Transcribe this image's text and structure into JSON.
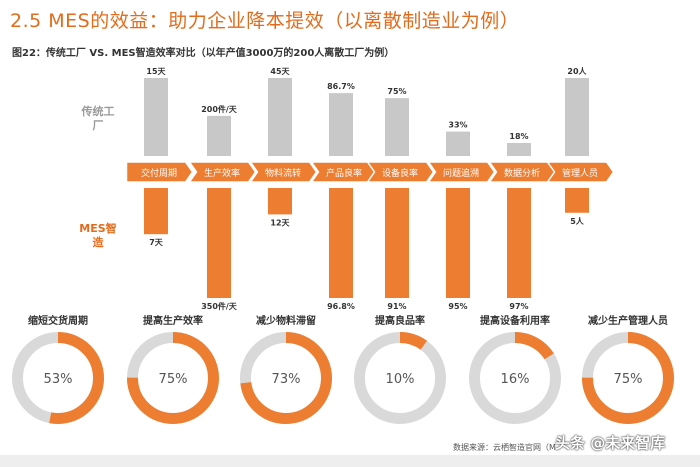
{
  "header": {
    "title": "2.5 MES的效益：助力企业降本提效（以离散制造业为例）",
    "subtitle": "图22：传统工厂 VS. MES智造效率对比（以年产值3000万的200人离散工厂为例）"
  },
  "labels": {
    "traditional": "传统工厂",
    "mes": "MES智造"
  },
  "chart_data": [
    {
      "type": "bar",
      "categories": [
        "交付周期",
        "生产效率",
        "物料流转",
        "产品良率",
        "设备良率",
        "问题追溯",
        "数据分析",
        "管理人员"
      ],
      "series": [
        {
          "name": "传统工厂",
          "values": [
            15,
            200,
            45,
            86.7,
            75,
            33,
            18,
            20
          ],
          "labels": [
            "15天",
            "200件/天",
            "45天",
            "86.7%",
            "75%",
            "33%",
            "18%",
            "20人"
          ]
        },
        {
          "name": "MES智造",
          "values": [
            7,
            350,
            12,
            96.8,
            91,
            95,
            97,
            5
          ],
          "labels": [
            "7天",
            "350件/天",
            "12天",
            "96.8%",
            "91%",
            "95%",
            "97%",
            "5人"
          ]
        }
      ],
      "colors": {
        "traditional": "#c8c8c8",
        "mes": "#ed7d31",
        "arrow": "#ed7d31"
      }
    },
    {
      "type": "pie",
      "donuts": [
        {
          "title": "缩短交货周期",
          "value": 53,
          "label": "53%"
        },
        {
          "title": "提高生产效率",
          "value": 75,
          "label": "75%"
        },
        {
          "title": "减少物料滞留",
          "value": 73,
          "label": "73%"
        },
        {
          "title": "提高良品率",
          "value": 10,
          "label": "10%"
        },
        {
          "title": "提高设备利用率",
          "value": 16,
          "label": "16%"
        },
        {
          "title": "减少生产管理人员",
          "value": 75,
          "label": "75%"
        }
      ],
      "colors": {
        "fill": "#ed7d31",
        "track": "#d9d9d9"
      }
    }
  ],
  "footer": {
    "source": "数据来源：云栖智造官网（M",
    "watermark": "头条 @未来智库"
  }
}
